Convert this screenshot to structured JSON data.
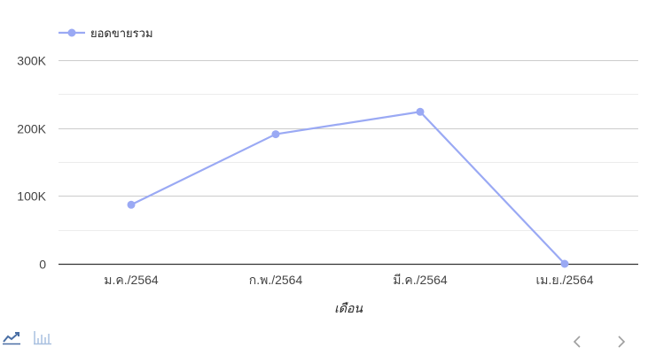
{
  "chart_data": {
    "type": "line",
    "categories": [
      "ม.ค./2564",
      "ก.พ./2564",
      "มี.ค./2564",
      "เม.ย./2564"
    ],
    "series": [
      {
        "name": "ยอดขายรวม",
        "values": [
          87000,
          191000,
          224000,
          0
        ],
        "color": "#9aa9f4"
      }
    ],
    "title": "",
    "xlabel": "เดือน",
    "ylabel": "",
    "ylim": [
      0,
      300000
    ],
    "yticks": [
      0,
      100000,
      200000,
      300000
    ],
    "ytick_labels": [
      "0",
      "100K",
      "200K",
      "300K"
    ],
    "grid": true,
    "legend": "top-left"
  },
  "toolbar": {
    "line_chart_icon": "line-chart-icon",
    "bar_chart_icon": "bar-chart-icon",
    "prev_icon": "chevron-left-icon",
    "next_icon": "chevron-right-icon",
    "active_color": "#4a6fa5",
    "inactive_color": "#a9c0e0",
    "nav_color": "#9e9e9e"
  }
}
